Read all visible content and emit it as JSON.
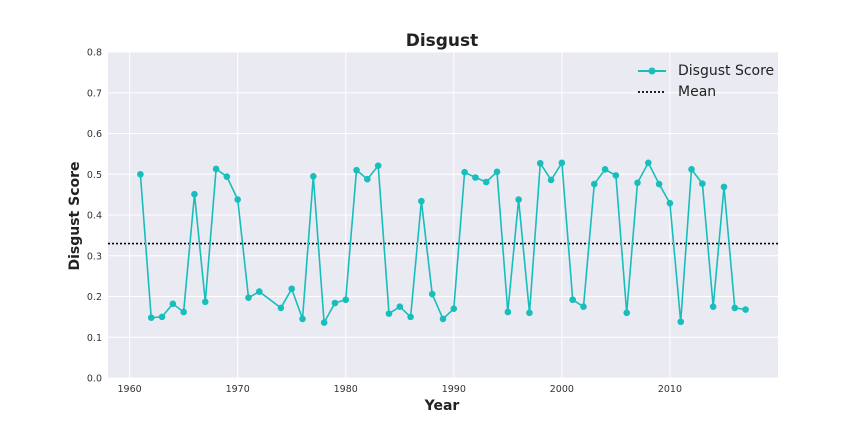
{
  "chart_data": {
    "type": "line",
    "title": "Disgust",
    "xlabel": "Year",
    "ylabel": "Disgust Score",
    "xlim": [
      1958,
      2020
    ],
    "ylim": [
      0.0,
      0.8
    ],
    "x_ticks": [
      1960,
      1970,
      1980,
      1990,
      2000,
      2010
    ],
    "y_ticks": [
      "0.0",
      "0.1",
      "0.2",
      "0.3",
      "0.4",
      "0.5",
      "0.6",
      "0.7",
      "0.8"
    ],
    "grid": true,
    "legend_position": "top-right",
    "mean": 0.33,
    "colors": {
      "series": "#17bebb",
      "mean": "#000000",
      "background": "#eaeaf2",
      "grid": "#ffffff"
    },
    "series": [
      {
        "name": "Disgust Score",
        "x": [
          1961,
          1962,
          1963,
          1964,
          1965,
          1966,
          1967,
          1968,
          1969,
          1970,
          1971,
          1972,
          1974,
          1975,
          1976,
          1977,
          1978,
          1979,
          1980,
          1981,
          1982,
          1983,
          1984,
          1985,
          1986,
          1987,
          1988,
          1989,
          1990,
          1991,
          1992,
          1993,
          1994,
          1995,
          1996,
          1997,
          1998,
          1999,
          2000,
          2001,
          2002,
          2003,
          2004,
          2005,
          2006,
          2007,
          2008,
          2009,
          2010,
          2011,
          2012,
          2013,
          2014,
          2015,
          2016,
          2017
        ],
        "values": [
          0.5,
          0.148,
          0.15,
          0.182,
          0.162,
          0.451,
          0.187,
          0.513,
          0.494,
          0.438,
          0.197,
          0.212,
          0.172,
          0.219,
          0.145,
          0.495,
          0.136,
          0.184,
          0.192,
          0.51,
          0.488,
          0.521,
          0.158,
          0.175,
          0.15,
          0.434,
          0.206,
          0.145,
          0.17,
          0.505,
          0.492,
          0.481,
          0.506,
          0.162,
          0.438,
          0.16,
          0.527,
          0.486,
          0.528,
          0.192,
          0.175,
          0.476,
          0.512,
          0.497,
          0.16,
          0.479,
          0.528,
          0.476,
          0.429,
          0.138,
          0.512,
          0.477,
          0.175,
          0.469,
          0.172,
          0.168
        ]
      }
    ],
    "legend": [
      {
        "key": "series",
        "label": "Disgust Score"
      },
      {
        "key": "mean",
        "label": "Mean"
      }
    ]
  }
}
